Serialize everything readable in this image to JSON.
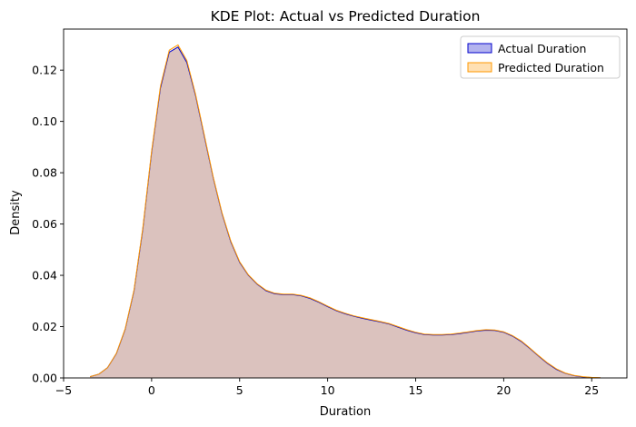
{
  "chart_data": {
    "type": "area",
    "title": "KDE Plot: Actual vs Predicted Duration",
    "xlabel": "Duration",
    "ylabel": "Density",
    "xlim": [
      -5,
      27
    ],
    "ylim": [
      0,
      0.136
    ],
    "xticks": [
      -5,
      0,
      5,
      10,
      15,
      20,
      25
    ],
    "yticks": [
      0.0,
      0.02,
      0.04,
      0.06,
      0.08,
      0.1,
      0.12
    ],
    "grid": false,
    "legend_position": "top-right",
    "series": [
      {
        "name": "Actual Duration",
        "line_color": "#0000cc",
        "fill_color": "#b3b3ee",
        "x": [
          -3.5,
          -3,
          -2.5,
          -2,
          -1.5,
          -1,
          -0.5,
          0,
          0.5,
          1,
          1.5,
          2,
          2.5,
          3,
          3.5,
          4,
          4.5,
          5,
          5.5,
          6,
          6.5,
          7,
          7.5,
          8,
          8.5,
          9,
          9.5,
          10,
          10.5,
          11,
          11.5,
          12,
          12.5,
          13,
          13.5,
          14,
          14.5,
          15,
          15.5,
          16,
          16.5,
          17,
          17.5,
          18,
          18.5,
          19,
          19.5,
          20,
          20.5,
          21,
          21.5,
          22,
          22.5,
          23,
          23.5,
          24,
          24.5,
          25,
          25.5
        ],
        "y": [
          0.0005,
          0.0015,
          0.004,
          0.0095,
          0.019,
          0.034,
          0.058,
          0.088,
          0.113,
          0.127,
          0.129,
          0.123,
          0.11,
          0.094,
          0.078,
          0.064,
          0.053,
          0.045,
          0.04,
          0.0365,
          0.034,
          0.0328,
          0.0325,
          0.0325,
          0.032,
          0.031,
          0.0295,
          0.0278,
          0.0262,
          0.025,
          0.024,
          0.0232,
          0.0225,
          0.0218,
          0.021,
          0.0198,
          0.0186,
          0.0176,
          0.0169,
          0.0167,
          0.0167,
          0.0169,
          0.0173,
          0.0178,
          0.0183,
          0.0186,
          0.0185,
          0.0178,
          0.0163,
          0.0142,
          0.0114,
          0.0084,
          0.0056,
          0.0033,
          0.0018,
          0.0009,
          0.0004,
          0.00015,
          5e-05
        ]
      },
      {
        "name": "Predicted Duration",
        "line_color": "#ff9900",
        "fill_color": "#ffe0b3",
        "x": [
          -3.5,
          -3,
          -2.5,
          -2,
          -1.5,
          -1,
          -0.5,
          0,
          0.5,
          1,
          1.5,
          2,
          2.5,
          3,
          3.5,
          4,
          4.5,
          5,
          5.5,
          6,
          6.5,
          7,
          7.5,
          8,
          8.5,
          9,
          9.5,
          10,
          10.5,
          11,
          11.5,
          12,
          12.5,
          13,
          13.5,
          14,
          14.5,
          15,
          15.5,
          16,
          16.5,
          17,
          17.5,
          18,
          18.5,
          19,
          19.5,
          20,
          20.5,
          21,
          21.5,
          22,
          22.5,
          23,
          23.5,
          24,
          24.5,
          25,
          25.5
        ],
        "y": [
          0.0005,
          0.0015,
          0.004,
          0.0096,
          0.0192,
          0.0343,
          0.0585,
          0.0885,
          0.1138,
          0.1278,
          0.1298,
          0.1238,
          0.1105,
          0.0945,
          0.0783,
          0.0643,
          0.0533,
          0.0453,
          0.0402,
          0.0367,
          0.0342,
          0.033,
          0.0327,
          0.0327,
          0.0322,
          0.0312,
          0.0297,
          0.028,
          0.0264,
          0.0252,
          0.0242,
          0.0234,
          0.0227,
          0.022,
          0.0212,
          0.02,
          0.0188,
          0.0178,
          0.0171,
          0.0169,
          0.0169,
          0.0171,
          0.0175,
          0.018,
          0.0185,
          0.0188,
          0.0187,
          0.018,
          0.0165,
          0.0144,
          0.0116,
          0.0086,
          0.0058,
          0.0035,
          0.0019,
          0.001,
          0.0005,
          0.0002,
          8e-05
        ]
      }
    ],
    "overlap_fill_color": "#cfb8c2"
  }
}
